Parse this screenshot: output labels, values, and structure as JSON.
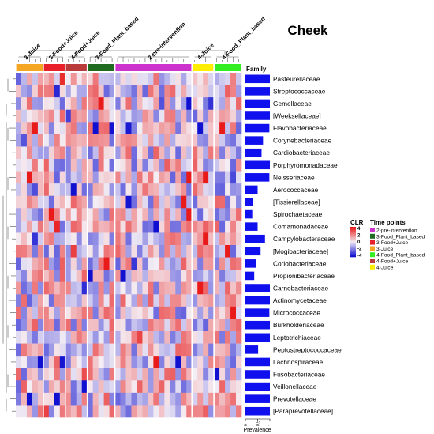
{
  "chart_data": {
    "type": "heatmap",
    "title": "Cheek",
    "family_label": "Family",
    "x_axis_title": "Prevalence",
    "x_ticks": [
      "0",
      "0.5",
      "1"
    ],
    "group_labels": [
      "3-Juice",
      "3-Food+Juice",
      "4-Food+Juice",
      "3-Food_Plant_based",
      "2-pre-intervention",
      "4-Juice",
      "4-Food_Plant_based"
    ],
    "groups": [
      {
        "name": "3-Juice",
        "n": 5,
        "color": "#f5a623"
      },
      {
        "name": "3-Food+Juice",
        "n": 4,
        "color": "#e8202a"
      },
      {
        "name": "4-Food+Juice",
        "n": 4,
        "color": "#b83a3a"
      },
      {
        "name": "3-Food_Plant_based",
        "n": 5,
        "color": "#1f6b1f"
      },
      {
        "name": "2-pre-intervention",
        "n": 14,
        "color": "#cc33cc"
      },
      {
        "name": "4-Juice",
        "n": 4,
        "color": "#ffee00"
      },
      {
        "name": "4-Food_Plant_based",
        "n": 5,
        "color": "#33ee22"
      }
    ],
    "families": [
      {
        "name": "Pasteurellaceae",
        "prevalence": 1.0
      },
      {
        "name": "Streptococcaceae",
        "prevalence": 1.0
      },
      {
        "name": "Gemellaceae",
        "prevalence": 1.0
      },
      {
        "name": "[Weeksellaceae]",
        "prevalence": 1.0
      },
      {
        "name": "Flavobacteriaceae",
        "prevalence": 0.98
      },
      {
        "name": "Corynebacteriaceae",
        "prevalence": 0.72
      },
      {
        "name": "Cardiobacteriaceae",
        "prevalence": 0.66
      },
      {
        "name": "Porphyromonadaceae",
        "prevalence": 1.0
      },
      {
        "name": "Neisseriaceae",
        "prevalence": 0.98
      },
      {
        "name": "Aerococcaceae",
        "prevalence": 0.5
      },
      {
        "name": "[Tissierellaceae]",
        "prevalence": 0.32
      },
      {
        "name": "Spirochaetaceae",
        "prevalence": 0.28
      },
      {
        "name": "Comamonadaceae",
        "prevalence": 0.5
      },
      {
        "name": "Campylobacteraceae",
        "prevalence": 0.8
      },
      {
        "name": "[Mogibacteriaceae]",
        "prevalence": 0.62
      },
      {
        "name": "Coriobacteriaceae",
        "prevalence": 0.45
      },
      {
        "name": "Propionibacteriaceae",
        "prevalence": 0.36
      },
      {
        "name": "Carnobacteriaceae",
        "prevalence": 1.0
      },
      {
        "name": "Actinomycetaceae",
        "prevalence": 1.0
      },
      {
        "name": "Micrococcaceae",
        "prevalence": 0.98
      },
      {
        "name": "Burkholderiaceae",
        "prevalence": 1.0
      },
      {
        "name": "Leptotrichiaceae",
        "prevalence": 1.0
      },
      {
        "name": "Peptostreptococcaceae",
        "prevalence": 0.52
      },
      {
        "name": "Lachnospiraceae",
        "prevalence": 1.0
      },
      {
        "name": "Fusobacteriaceae",
        "prevalence": 1.0
      },
      {
        "name": "Veillonellaceae",
        "prevalence": 1.0
      },
      {
        "name": "Prevotellaceae",
        "prevalence": 1.0
      },
      {
        "name": "[Paraprevotellaceae]",
        "prevalence": 1.0
      }
    ],
    "clr_scale": {
      "title": "CLR",
      "ticks": [
        "4",
        "2",
        "0",
        "-2",
        "-4"
      ],
      "low": "#1010d0",
      "mid": "#f4eef4",
      "high": "#e81a1a",
      "range": [
        -4,
        4
      ]
    },
    "legend": {
      "title": "Time points",
      "items": [
        {
          "label": "2-pre-intervention",
          "color": "#cc33cc"
        },
        {
          "label": "3-Food_Plant_based",
          "color": "#1f6b1f"
        },
        {
          "label": "3-Food+Juice",
          "color": "#e8202a"
        },
        {
          "label": "3-Juice",
          "color": "#f5a623"
        },
        {
          "label": "4-Food_Plant_based",
          "color": "#33ee22"
        },
        {
          "label": "4-Food+Juice",
          "color": "#b83a3a"
        },
        {
          "label": "4-Juice",
          "color": "#ffee00"
        }
      ]
    },
    "bar_color": "#1010ee"
  }
}
